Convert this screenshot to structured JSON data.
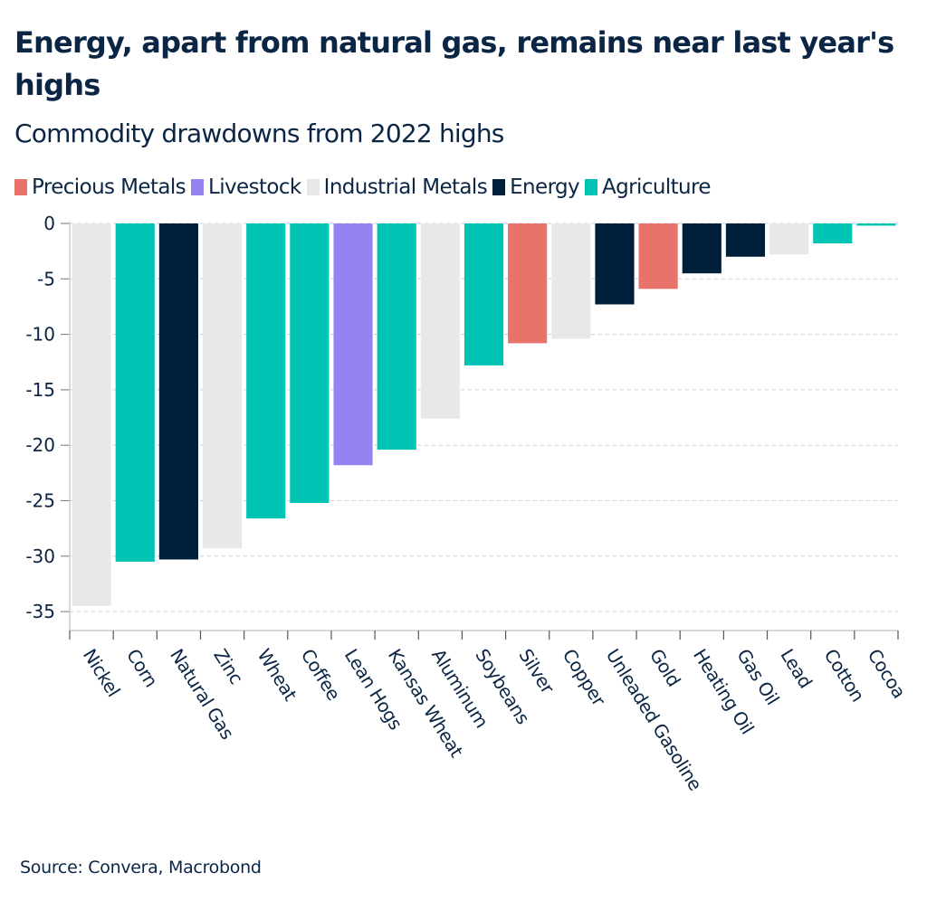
{
  "chart_data": {
    "type": "bar",
    "title": "Energy, apart from natural gas, remains near last year's highs",
    "subtitle": "Commodity drawdowns from 2022 highs",
    "xlabel": "",
    "ylabel": "",
    "ylim": [
      -36.5,
      0
    ],
    "yticks": [
      0,
      -5,
      -10,
      -15,
      -20,
      -25,
      -30,
      -35
    ],
    "ytick_labels": [
      "0",
      "-5",
      "-10",
      "-15",
      "-20",
      "-25",
      "-30",
      "-35"
    ],
    "grid": true,
    "legend_position": "top-left",
    "legend": [
      {
        "name": "Precious Metals",
        "color": "#e8736a"
      },
      {
        "name": "Livestock",
        "color": "#9384f1"
      },
      {
        "name": "Industrial Metals",
        "color": "#e8e8e8"
      },
      {
        "name": "Energy",
        "color": "#001f3a"
      },
      {
        "name": "Agriculture",
        "color": "#00c4b3"
      }
    ],
    "categories": [
      "Nickel",
      "Corn",
      "Natural Gas",
      "Zinc",
      "Wheat",
      "Coffee",
      "Lean Hogs",
      "Kansas Wheat",
      "Aluminum",
      "Soybeans",
      "Silver",
      "Copper",
      "Unleaded Gasoline",
      "Gold",
      "Heating Oil",
      "Gas Oil",
      "Lead",
      "Cotton",
      "Cocoa"
    ],
    "values": [
      -34.5,
      -30.5,
      -30.3,
      -29.3,
      -26.6,
      -25.2,
      -21.8,
      -20.4,
      -17.6,
      -12.8,
      -10.8,
      -10.4,
      -7.3,
      -5.9,
      -4.5,
      -3.0,
      -2.8,
      -1.8,
      -0.2
    ],
    "groups": [
      "Industrial Metals",
      "Agriculture",
      "Energy",
      "Industrial Metals",
      "Agriculture",
      "Agriculture",
      "Livestock",
      "Agriculture",
      "Industrial Metals",
      "Agriculture",
      "Precious Metals",
      "Industrial Metals",
      "Energy",
      "Precious Metals",
      "Energy",
      "Energy",
      "Industrial Metals",
      "Agriculture",
      "Agriculture"
    ],
    "source": "Source: Convera, Macrobond"
  }
}
